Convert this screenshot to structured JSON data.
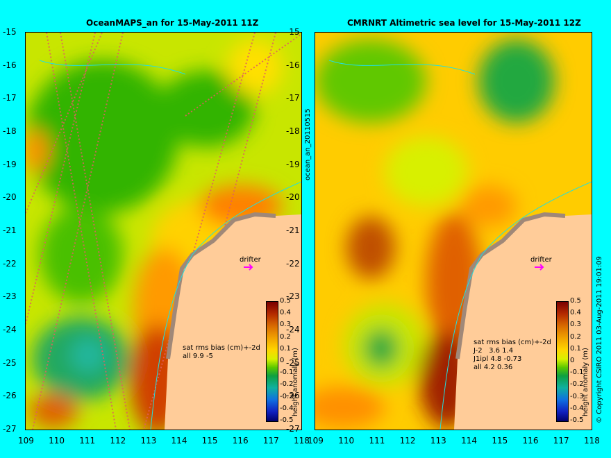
{
  "left_panel": {
    "title": "OceanMAPS_an for 15-May-2011 11Z",
    "drifter_label": "drifter",
    "bias_lines": [
      "sat rms bias (cm)+-2d",
      "all 9.9 -5"
    ],
    "colorbar_label": "height anomaly (m)"
  },
  "right_panel": {
    "title": "CMRNRT Altimetric sea level  for 15-May-2011 12Z",
    "drifter_label": "drifter",
    "bias_lines": [
      "sat rms bias (cm)+-2d",
      "J-2   3.6 1.4",
      "J1ipl 4.8 -0.73",
      "all 4.2 0.36"
    ],
    "colorbar_label": "height anomaly (m)"
  },
  "side_label": "ocean_an_20110515",
  "copyright": "© Copyright CSIRO 2011  03-Aug-2011 19:01:09",
  "latitudes": [
    "-15",
    "-16",
    "-17",
    "-18",
    "-19",
    "-20",
    "-21",
    "-22",
    "-23",
    "-24",
    "-25",
    "-26",
    "-27"
  ],
  "longitudes": [
    "109",
    "110",
    "111",
    "112",
    "113",
    "114",
    "115",
    "116",
    "117",
    "118"
  ],
  "colorbar_ticks": [
    "0.5",
    "0.4",
    "0.3",
    "0.2",
    "0.1",
    "0",
    "-0.1",
    "-0.2",
    "-0.3",
    "-0.4",
    "-0.5"
  ],
  "colors": {
    "background": "#00ffff",
    "land": "#ffcc99",
    "drifter_arrow": "#ff00ff"
  }
}
